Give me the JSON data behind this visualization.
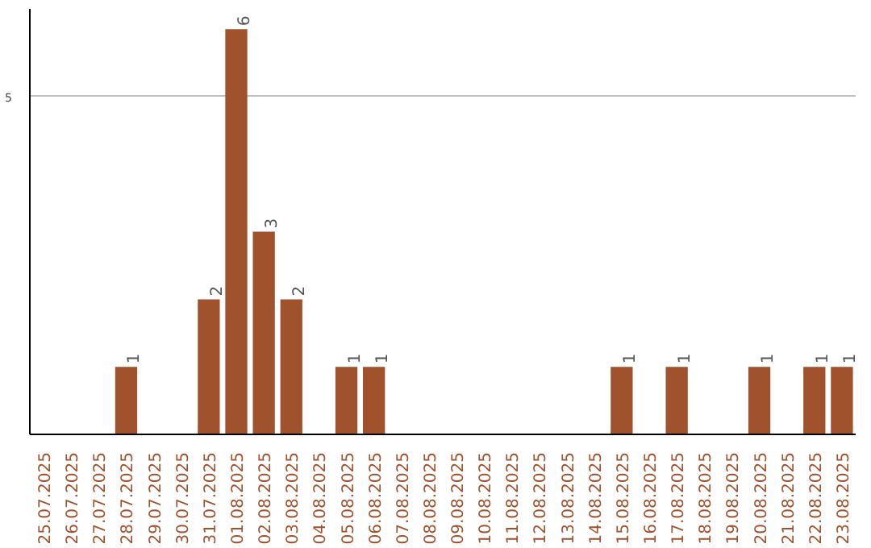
{
  "chart_data": {
    "type": "bar",
    "categories": [
      "25.07.2025",
      "26.07.2025",
      "27.07.2025",
      "28.07.2025",
      "29.07.2025",
      "30.07.2025",
      "31.07.2025",
      "01.08.2025",
      "02.08.2025",
      "03.08.2025",
      "04.08.2025",
      "05.08.2025",
      "06.08.2025",
      "07.08.2025",
      "08.08.2025",
      "09.08.2025",
      "10.08.2025",
      "11.08.2025",
      "12.08.2025",
      "13.08.2025",
      "14.08.2025",
      "15.08.2025",
      "16.08.2025",
      "17.08.2025",
      "18.08.2025",
      "19.08.2025",
      "20.08.2025",
      "21.08.2025",
      "22.08.2025",
      "23.08.2025"
    ],
    "values": [
      0,
      0,
      0,
      1,
      0,
      0,
      2,
      6,
      3,
      2,
      0,
      1,
      1,
      0,
      0,
      0,
      0,
      0,
      0,
      0,
      0,
      1,
      0,
      1,
      0,
      0,
      1,
      0,
      1,
      1
    ],
    "value_labels": [
      null,
      null,
      null,
      "1",
      null,
      null,
      "2",
      "6",
      "3",
      "2",
      null,
      "1",
      "1",
      null,
      null,
      null,
      null,
      null,
      null,
      null,
      null,
      "1",
      null,
      "1",
      null,
      null,
      "1",
      null,
      "1",
      "1"
    ],
    "color": "#a0522d",
    "ylim": [
      0,
      6.3
    ],
    "yticks": [
      5
    ],
    "grid": "y"
  }
}
